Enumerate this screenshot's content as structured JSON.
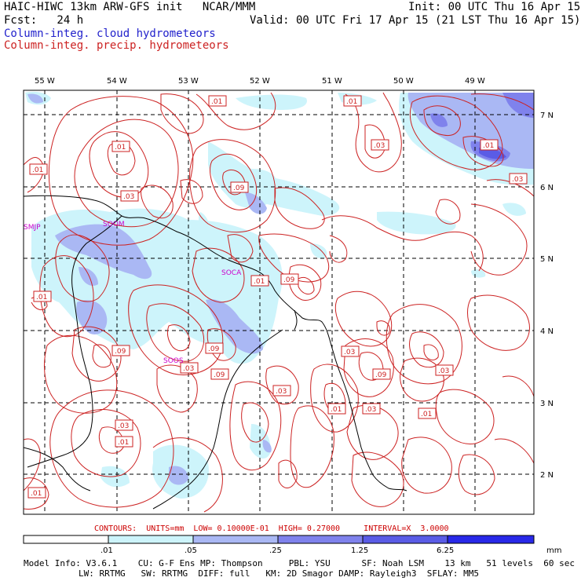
{
  "header": {
    "title": "HAIC-HIWC 13km ARW-GFS init   NCAR/MMM",
    "init": "Init: 00 UTC Thu 16 Apr 15",
    "fcst": "Fcst:   24 h",
    "valid": "Valid: 00 UTC Fri 17 Apr 15 (21 LST Thu 16 Apr 15)",
    "field1": "Column-integ. cloud hydrometeors",
    "field2": "Column-integ. precip. hydrometeors"
  },
  "map": {
    "lon_labels": [
      "55 W",
      "54 W",
      "53 W",
      "52 W",
      "51 W",
      "50 W",
      "49 W"
    ],
    "lat_labels": [
      "7 N",
      "6 N",
      "5 N",
      "4 N",
      "3 N",
      "2 N"
    ],
    "stations": [
      "SMJP",
      "SOCA",
      "SOOM",
      "SOOS"
    ],
    "contour_labels": [
      ".01",
      ".01",
      ".01",
      ".03",
      ".01",
      ".01",
      ".03",
      ".03",
      ".09",
      ".01",
      ".09",
      ".01",
      ".09",
      ".09",
      ".03",
      ".09",
      ".03",
      ".03",
      ".09",
      ".03",
      ".01",
      ".03",
      ".01",
      ".03",
      ".01",
      ".01"
    ],
    "colors": {
      "cloud_light": "#cdf4fb",
      "cloud_mid": "#aab8f4",
      "cloud_dark": "#7f82ec",
      "cloud_darkest": "#4a4ed8",
      "contour": "#cc2222",
      "grid": "#000000"
    }
  },
  "legend": {
    "contours": "CONTOURS:  UNITS=mm  LOW= 0.10000E-01  HIGH= 0.27000     INTERVAL=X  3.0000",
    "ticks": [
      ".01",
      ".05",
      ".25",
      "1.25",
      "6.25"
    ],
    "unit": "mm",
    "colors": [
      "#ffffff",
      "#cdf4fb",
      "#aab8f4",
      "#7f82ec",
      "#5a5ce6",
      "#2828e8"
    ]
  },
  "model_info": {
    "line1": "Model Info: V3.6.1    CU: G-F Ens MP: Thompson     PBL: YSU      SF: Noah LSM    13 km   51 levels  60 sec",
    "line2": "LW: RRTMG   SW: RRTMG  DIFF: full   KM: 2D Smagor DAMP: Rayleigh3  SFLAY: MM5"
  }
}
